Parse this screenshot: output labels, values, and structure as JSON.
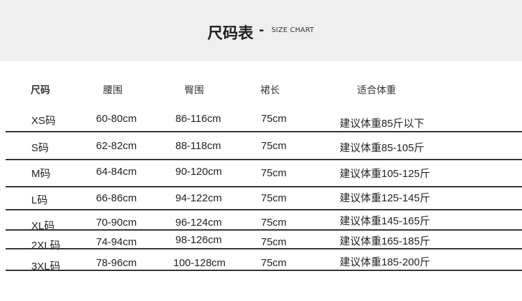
{
  "header": {
    "title": "尺码表",
    "dash": "-",
    "subtitle": "SIZE CHART"
  },
  "columns": [
    "尺码",
    "腰围",
    "臀围",
    "裙长",
    "适合体重"
  ],
  "rows": [
    {
      "size": "XS码",
      "waist": "60-80cm",
      "hip": "86-116cm",
      "length": "75cm",
      "weight": "建议体重85斤以下"
    },
    {
      "size": "S码",
      "waist": "62-82cm",
      "hip": "88-118cm",
      "length": "75cm",
      "weight": "建议体重85-105斤"
    },
    {
      "size": "M码",
      "waist": "64-84cm",
      "hip": "90-120cm",
      "length": "75cm",
      "weight": "建议体重105-125斤"
    },
    {
      "size": "L码",
      "waist": "66-86cm",
      "hip": "94-122cm",
      "length": "75cm",
      "weight": "建议体重125-145斤"
    },
    {
      "size": "XL码",
      "waist": "70-90cm",
      "hip": "96-124cm",
      "length": "75cm",
      "weight": "建议体重145-165斤"
    },
    {
      "size": "2XL码",
      "waist": "74-94cm",
      "hip": "98-126cm",
      "length": "75cm",
      "weight": "建议体重165-185斤"
    },
    {
      "size": "3XL码",
      "waist": "78-96cm",
      "hip": "100-128cm",
      "length": "75cm",
      "weight": "建议体重185-200斤"
    }
  ]
}
